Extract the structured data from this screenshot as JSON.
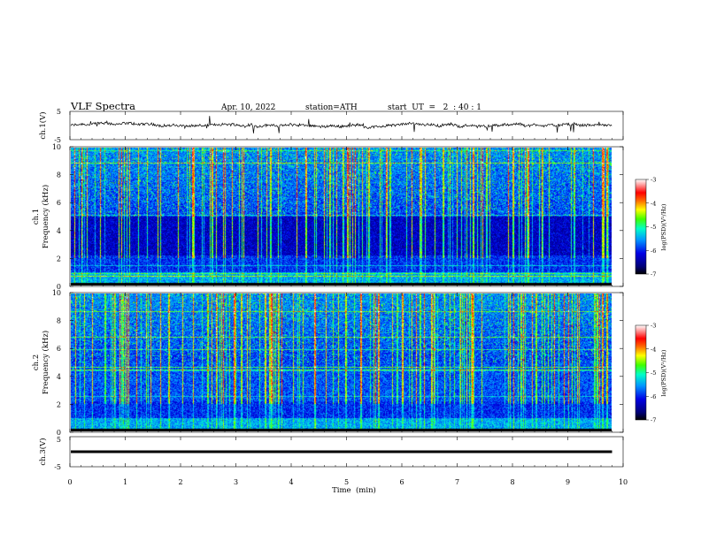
{
  "header": {
    "title": "VLF  Spectra",
    "date": "Apr. 10, 2022",
    "station": "station=ATH",
    "start": "start  UT  =   2  : 40 : 1"
  },
  "chart_data": {
    "type": "heatmap",
    "x_axis": {
      "label": "Time  (min)",
      "range": [
        0,
        10
      ],
      "ticks": [
        "0",
        "1",
        "2",
        "3",
        "4",
        "5",
        "6",
        "7",
        "8",
        "9",
        "10"
      ]
    },
    "panels": [
      {
        "id": "ch1_waveform",
        "kind": "line",
        "ylabel": "ch.1(V)",
        "ylim": [
          -5,
          5
        ],
        "yticks": [
          "5",
          "-5"
        ],
        "data_end_min": 9.8
      },
      {
        "id": "ch1_spectrogram",
        "kind": "heatmap",
        "ylabel_top": "ch.1",
        "ylabel": "Frequency  (kHz)",
        "ylim": [
          0,
          10
        ],
        "yticks": [
          "0",
          "2",
          "4",
          "6",
          "8",
          "10"
        ],
        "data_end_min": 9.8
      },
      {
        "id": "ch2_spectrogram",
        "kind": "heatmap",
        "ylabel_top": "ch.2",
        "ylabel": "Frequency  (kHz)",
        "ylim": [
          0,
          10
        ],
        "yticks": [
          "0",
          "2",
          "4",
          "6",
          "8",
          "10"
        ],
        "data_end_min": 9.8
      },
      {
        "id": "ch3_waveform",
        "kind": "line",
        "ylabel": "ch.3(V)",
        "ylim": [
          -5,
          5
        ],
        "yticks": [
          "5",
          "-5"
        ],
        "data_end_min": 9.8,
        "level": 0
      }
    ],
    "colorbar": {
      "label": "log(PSD)(V²/Hz)",
      "range": [
        -7,
        -3
      ],
      "ticks": [
        "-3",
        "-4",
        "-5",
        "-6",
        "-7"
      ],
      "colors": [
        "#000000",
        "#0000b4",
        "#0050ff",
        "#00c8ff",
        "#00ff80",
        "#80ff00",
        "#ffff00",
        "#ff8000",
        "#ff0000",
        "#ff8080",
        "#ffffff"
      ]
    }
  }
}
